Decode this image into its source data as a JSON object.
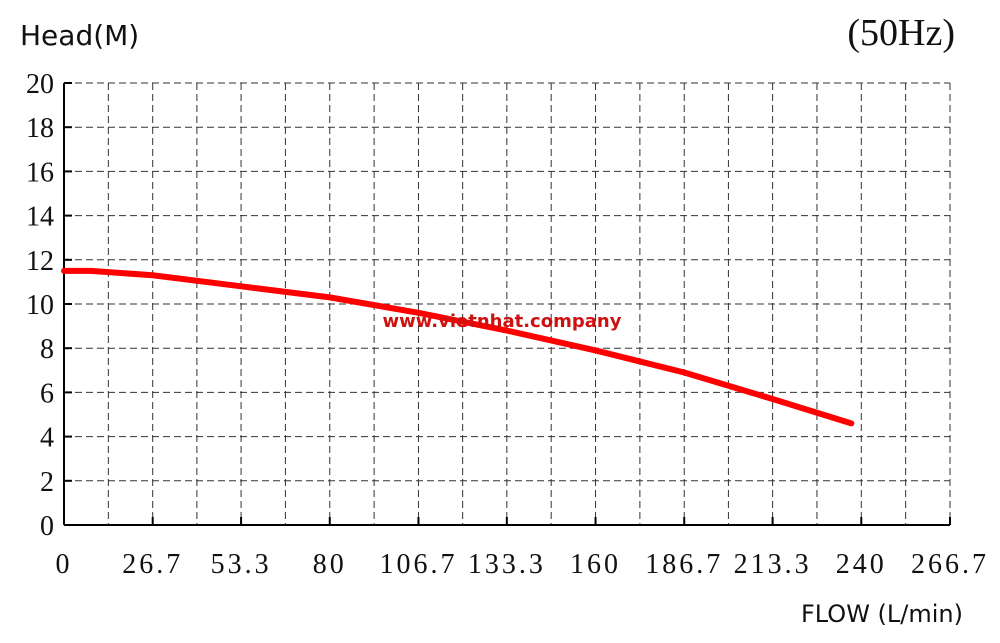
{
  "chart_data": {
    "type": "line",
    "title": "(50Hz)",
    "y_label": "Head(M)",
    "x_label": "FLOW (L/min)",
    "watermark": "www.vietnhat.company",
    "x": [
      0,
      8,
      26.7,
      53.3,
      80,
      106.7,
      133.3,
      160,
      186.7,
      213.3,
      237
    ],
    "series": [
      {
        "name": "Head",
        "color": "#ff0000",
        "values": [
          11.5,
          11.5,
          11.3,
          10.8,
          10.3,
          9.6,
          8.8,
          7.9,
          6.9,
          5.7,
          4.6
        ]
      }
    ],
    "xlim": [
      0,
      266.7
    ],
    "xticks": [
      0,
      26.7,
      53.3,
      80,
      106.7,
      133.3,
      160,
      186.7,
      213.3,
      240,
      266.7
    ],
    "ylim": [
      0,
      20
    ],
    "yticks": [
      0,
      2,
      4,
      6,
      8,
      10,
      12,
      14,
      16,
      18,
      20
    ],
    "grid": true
  }
}
